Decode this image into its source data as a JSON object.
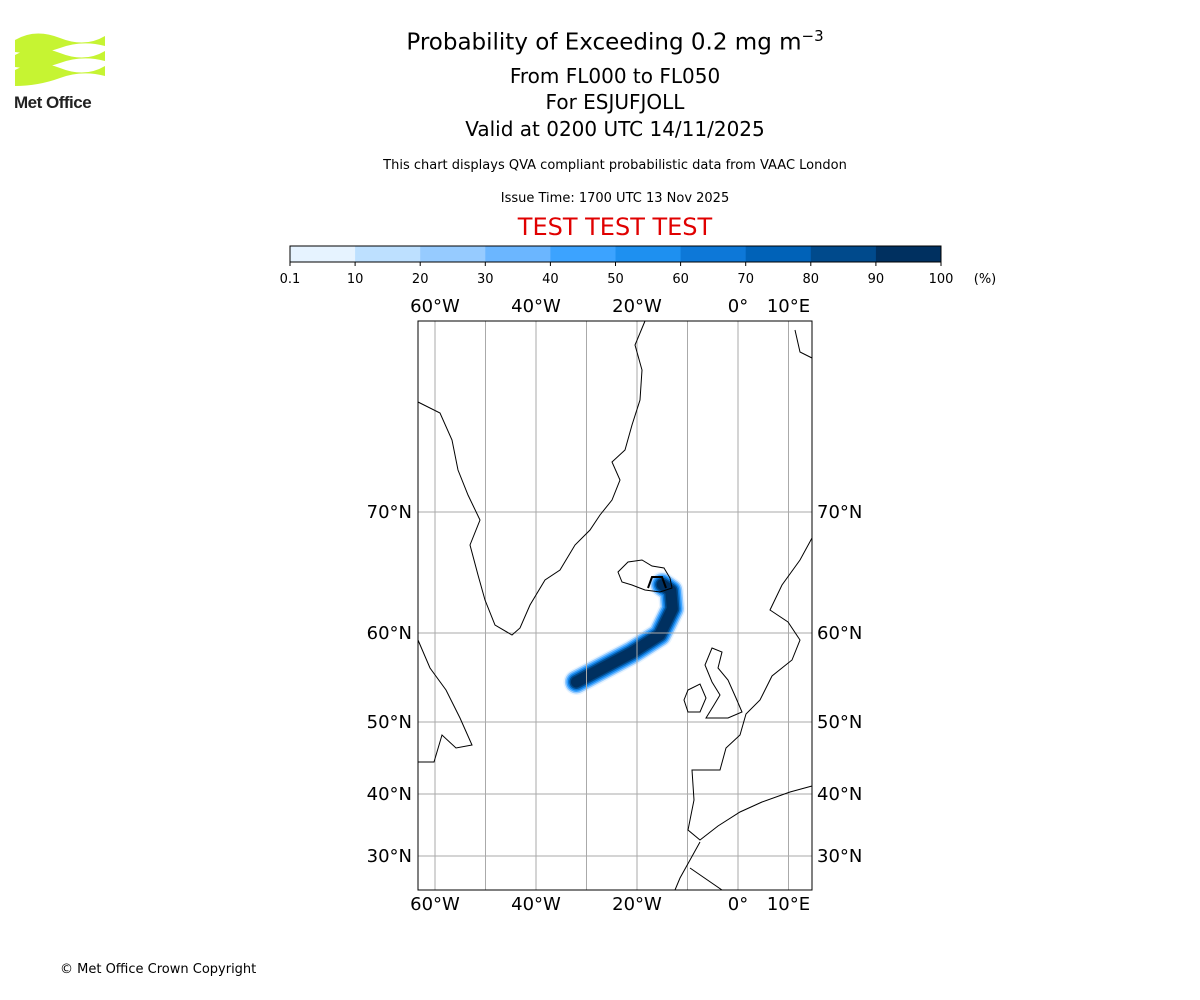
{
  "logo": {
    "text": "Met Office",
    "color": "#c6f432"
  },
  "header": {
    "title_main": "Probability of Exceeding 0.2 mg m",
    "title_sup": "−3",
    "levels": "From FL000 to FL050",
    "location": "For ESJUFJOLL",
    "valid": "Valid at 0200 UTC 14/11/2025",
    "info": "This chart displays QVA compliant probabilistic data from VAAC London",
    "issue": "Issue Time: 1700 UTC 13 Nov 2025",
    "test": "TEST TEST TEST"
  },
  "footer": {
    "copyright": "© Met Office Crown Copyright"
  },
  "chart_data": {
    "type": "heatmap",
    "title": "Probability of Exceeding 0.2 mg m-3",
    "colorbar": {
      "ticks": [
        "0.1",
        "10",
        "20",
        "30",
        "40",
        "50",
        "60",
        "70",
        "80",
        "90",
        "100"
      ],
      "unit": "(%)",
      "colors": [
        "#e6f3ff",
        "#bde0ff",
        "#96cbff",
        "#6bb6ff",
        "#3ca3ff",
        "#1e90f0",
        "#0d78d8",
        "#0062b8",
        "#004a8c",
        "#003060"
      ]
    },
    "map": {
      "lon_ticks": [
        {
          "value": -60,
          "label": "60°W"
        },
        {
          "value": -40,
          "label": "40°W"
        },
        {
          "value": -20,
          "label": "20°W"
        },
        {
          "value": 0,
          "label": "0°"
        },
        {
          "value": 10,
          "label": "10°E"
        }
      ],
      "lon_grid": [
        -60,
        -50,
        -40,
        -30,
        -20,
        -10,
        0,
        10
      ],
      "lat_ticks": [
        {
          "value": 70,
          "label": "70°N"
        },
        {
          "value": 60,
          "label": "60°N"
        },
        {
          "value": 50,
          "label": "50°N"
        },
        {
          "value": 40,
          "label": "40°N"
        },
        {
          "value": 30,
          "label": "30°N"
        }
      ],
      "grid": true,
      "volcano": "ESJUFJOLL",
      "plume_track": [
        [
          -32,
          54.5
        ],
        [
          -27,
          56
        ],
        [
          -21,
          57.8
        ],
        [
          -15.5,
          59.8
        ],
        [
          -13,
          62
        ],
        [
          -13.3,
          63.5
        ],
        [
          -15,
          64
        ]
      ]
    }
  }
}
